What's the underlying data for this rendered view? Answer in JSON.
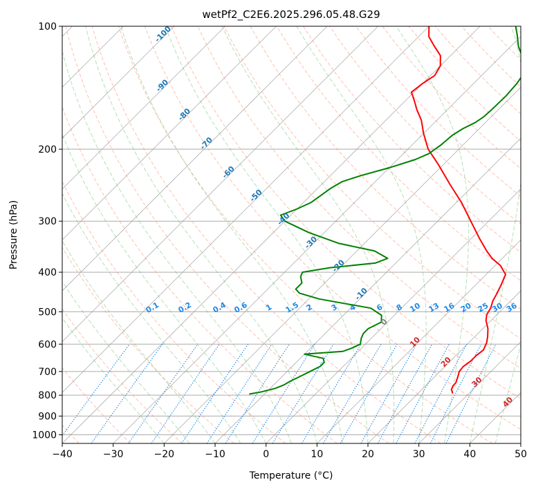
{
  "chart_data": {
    "type": "line",
    "title": "wetPf2_C2E6.2025.296.05.48.G29",
    "xlabel": "Temperature (°C)",
    "ylabel": "Pressure (hPa)",
    "xlim": [
      -40,
      50
    ],
    "ylim": [
      1050,
      100
    ],
    "y_scale": "log",
    "x_ticks": [
      -40,
      -30,
      -20,
      -10,
      0,
      10,
      20,
      30,
      40,
      50
    ],
    "y_ticks": [
      100,
      200,
      300,
      400,
      500,
      600,
      700,
      800,
      900,
      1000
    ],
    "grid": true,
    "series": [
      {
        "color": "#ff0000",
        "points": [
          [
            26.8,
            792
          ],
          [
            26.4,
            785
          ],
          [
            25.8,
            775
          ],
          [
            25.4,
            760
          ],
          [
            25.3,
            745
          ],
          [
            24.5,
            720
          ],
          [
            23.8,
            700
          ],
          [
            23.6,
            680
          ],
          [
            24.0,
            660
          ],
          [
            24.0,
            640
          ],
          [
            24.3,
            620
          ],
          [
            23.5,
            595
          ],
          [
            22.5,
            575
          ],
          [
            21.0,
            550
          ],
          [
            19.0,
            525
          ],
          [
            18.0,
            508
          ],
          [
            17.5,
            490
          ],
          [
            16.5,
            470
          ],
          [
            16.0,
            455
          ],
          [
            15.0,
            430
          ],
          [
            13.8,
            405
          ],
          [
            11.0,
            385
          ],
          [
            8.0,
            370
          ],
          [
            5.5,
            355
          ],
          [
            1.5,
            330
          ],
          [
            -3.5,
            300
          ],
          [
            -9.0,
            270
          ],
          [
            -15.0,
            243
          ],
          [
            -21.0,
            218
          ],
          [
            -26.0,
            200
          ],
          [
            -30.0,
            183
          ],
          [
            -33.0,
            170
          ],
          [
            -36.0,
            160
          ],
          [
            -38.3,
            152
          ],
          [
            -40.5,
            145
          ],
          [
            -40.0,
            138
          ],
          [
            -39.2,
            132
          ],
          [
            -40.0,
            125
          ],
          [
            -42.0,
            118
          ],
          [
            -45.0,
            112
          ],
          [
            -48.0,
            106
          ],
          [
            -50.0,
            100
          ]
        ]
      },
      {
        "color": "#008000",
        "points": [
          [
            -13.0,
            795
          ],
          [
            -11.0,
            785
          ],
          [
            -9.0,
            770
          ],
          [
            -8.0,
            755
          ],
          [
            -7.5,
            740
          ],
          [
            -6.5,
            720
          ],
          [
            -5.5,
            700
          ],
          [
            -4.5,
            680
          ],
          [
            -4.5,
            665
          ],
          [
            -5.5,
            650
          ],
          [
            -10.0,
            635
          ],
          [
            -3.0,
            625
          ],
          [
            -2.0,
            615
          ],
          [
            -1.0,
            600
          ],
          [
            -2.0,
            580
          ],
          [
            -2.5,
            565
          ],
          [
            -2.5,
            550
          ],
          [
            -1.2,
            530
          ],
          [
            -2.5,
            510
          ],
          [
            -6.0,
            490
          ],
          [
            -18.0,
            465
          ],
          [
            -23.0,
            450
          ],
          [
            -24.5,
            440
          ],
          [
            -24.5,
            425
          ],
          [
            -26.0,
            410
          ],
          [
            -26.5,
            400
          ],
          [
            -22.0,
            390
          ],
          [
            -14.0,
            380
          ],
          [
            -12.5,
            370
          ],
          [
            -16.5,
            355
          ],
          [
            -25.0,
            340
          ],
          [
            -33.0,
            320
          ],
          [
            -40.0,
            300
          ],
          [
            -42.0,
            290
          ],
          [
            -40.0,
            280
          ],
          [
            -38.5,
            270
          ],
          [
            -38.0,
            260
          ],
          [
            -37.5,
            250
          ],
          [
            -36.5,
            240
          ],
          [
            -34.0,
            232
          ],
          [
            -30.0,
            222
          ],
          [
            -26.5,
            212
          ],
          [
            -25.0,
            205
          ],
          [
            -24.3,
            195
          ],
          [
            -24.0,
            185
          ],
          [
            -23.2,
            178
          ],
          [
            -22.0,
            172
          ],
          [
            -21.5,
            167
          ],
          [
            -21.3,
            160
          ],
          [
            -21.2,
            148
          ],
          [
            -21.5,
            138
          ],
          [
            -22.0,
            132
          ],
          [
            -23.5,
            125
          ],
          [
            -26.0,
            118
          ],
          [
            -28.5,
            112
          ],
          [
            -31.0,
            105
          ],
          [
            -33.0,
            100
          ]
        ]
      }
    ],
    "mixing_ratio_labels": [
      "0.1",
      "0.2",
      "0.4",
      "0.6",
      "1",
      "1.5",
      "2",
      "3",
      "4",
      "6",
      "8",
      "10",
      "13",
      "16",
      "20",
      "25",
      "30",
      "36"
    ],
    "isotherm_labels": [
      {
        "t": -100,
        "text": "-100"
      },
      {
        "t": -90,
        "text": "-90"
      },
      {
        "t": -80,
        "text": "-80"
      },
      {
        "t": -70,
        "text": "-70"
      },
      {
        "t": -60,
        "text": "-60"
      },
      {
        "t": -50,
        "text": "-50"
      },
      {
        "t": -40,
        "text": "-40"
      },
      {
        "t": -30,
        "text": "-30"
      },
      {
        "t": -20,
        "text": "-20"
      },
      {
        "t": -10,
        "text": "-10"
      },
      {
        "t": 0,
        "text": "0"
      },
      {
        "t": 10,
        "text": "10"
      },
      {
        "t": 20,
        "text": "20"
      },
      {
        "t": 30,
        "text": "30"
      },
      {
        "t": 40,
        "text": "40"
      }
    ],
    "colors": {
      "temperature": "#ff0000",
      "dewpoint": "#008000",
      "isotherm_label_cold": "#1f77b4",
      "isotherm_label_zero": "#808080",
      "isotherm_label_warm": "#d62728",
      "mixing_ratio": "#1e88e5",
      "dry_adiabat": "#ff8c69",
      "moist_adiabat": "#5cb85c",
      "skew_isotherm": "#9a9a9a"
    }
  }
}
